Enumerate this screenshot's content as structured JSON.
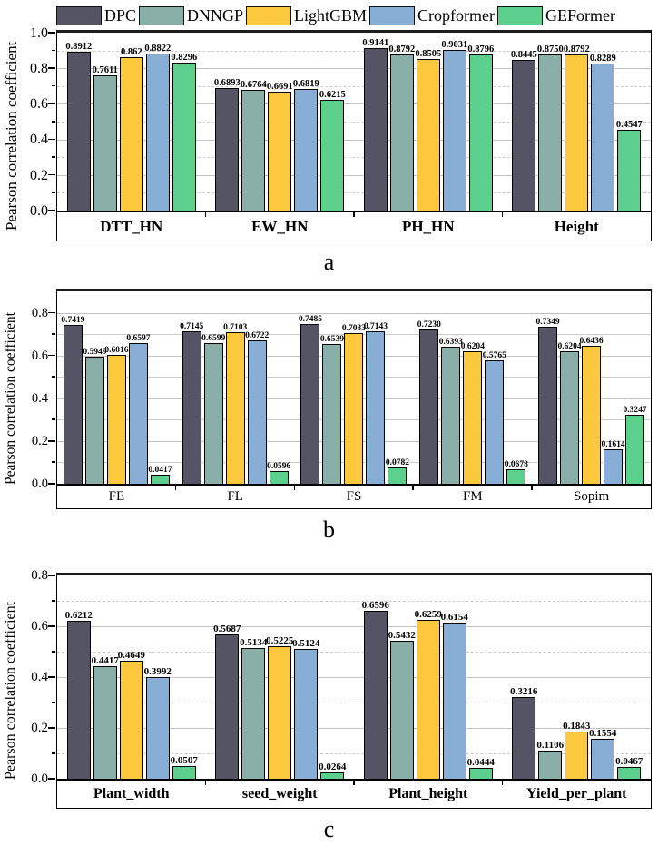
{
  "figure": {
    "background": "#ffffff",
    "y_axis_label": "Pearson correlation coefficient",
    "legend": {
      "position": "top",
      "items": [
        {
          "name": "DPC",
          "color": "#545464"
        },
        {
          "name": "DNNGP",
          "color": "#8aafa9"
        },
        {
          "name": "LightGBM",
          "color": "#fcc93e"
        },
        {
          "name": "Cropformer",
          "color": "#88aed6"
        },
        {
          "name": "GEFormer",
          "color": "#5ccf8d"
        }
      ]
    }
  },
  "chart_data": [
    {
      "id": "a",
      "type": "bar",
      "sublabel": "a",
      "title": "",
      "xlabel": "",
      "ylabel": "Pearson correlation coefficient",
      "ylim": [
        0,
        1.0
      ],
      "yticks": [
        "0.0",
        "0.2",
        "0.4",
        "0.6",
        "0.8",
        "1.0"
      ],
      "grid_style": "major_solid_minor_dashed",
      "legend_position": "top-shared",
      "categories": [
        "DTT_HN",
        "EW_HN",
        "PH_HN",
        "Height"
      ],
      "series": [
        {
          "name": "DPC",
          "values": [
            "0.8912",
            "0.6893",
            "0.9141",
            "0.8445"
          ]
        },
        {
          "name": "DNNGP",
          "values": [
            "0.7611",
            "0.6764",
            "0.8792",
            "0.8750"
          ]
        },
        {
          "name": "LightGBM",
          "values": [
            "0.862",
            "0.6691",
            "0.8505",
            "0.8792"
          ]
        },
        {
          "name": "Cropformer",
          "values": [
            "0.8822",
            "0.6819",
            "0.9031",
            "0.8289"
          ]
        },
        {
          "name": "GEFormer",
          "values": [
            "0.8296",
            "0.6215",
            "0.8796",
            "0.4547"
          ]
        }
      ]
    },
    {
      "id": "b",
      "type": "bar",
      "sublabel": "b",
      "title": "",
      "xlabel": "",
      "ylabel": "Pearson correlation coefficient",
      "ylim": [
        0,
        0.9
      ],
      "yticks": [
        "0.0",
        "0.2",
        "0.4",
        "0.6",
        "0.8"
      ],
      "grid_style": "solid_every_0.1",
      "legend_position": "top-shared",
      "categories": [
        "FE",
        "FL",
        "FS",
        "FM",
        "Sopim"
      ],
      "series": [
        {
          "name": "DPC",
          "values": [
            "0.7419",
            "0.7145",
            "0.7485",
            "0.7230",
            "0.7349"
          ]
        },
        {
          "name": "DNNGP",
          "values": [
            "0.5949",
            "0.6599",
            "0.6539",
            "0.6393",
            "0.6204"
          ]
        },
        {
          "name": "LightGBM",
          "values": [
            "0.6016",
            "0.7103",
            "0.7033",
            "0.6204",
            "0.6436"
          ]
        },
        {
          "name": "Cropformer",
          "values": [
            "0.6597",
            "0.6722",
            "0.7143",
            "0.5765",
            "0.1614"
          ]
        },
        {
          "name": "GEFormer",
          "values": [
            "0.0417",
            "0.0596",
            "0.0782",
            "0.0678",
            "0.3247"
          ]
        }
      ]
    },
    {
      "id": "c",
      "type": "bar",
      "sublabel": "c",
      "title": "",
      "xlabel": "",
      "ylabel": "Pearson correlation coefficient",
      "ylim": [
        0,
        0.8
      ],
      "yticks": [
        "0.0",
        "0.2",
        "0.4",
        "0.6",
        "0.8"
      ],
      "grid_style": "major_solid_minor_dashed",
      "legend_position": "top-shared",
      "categories": [
        "Plant_width",
        "seed_weight",
        "Plant_height",
        "Yield_per_plant"
      ],
      "series": [
        {
          "name": "DPC",
          "values": [
            "0.6212",
            "0.5687",
            "0.6596",
            "0.3216"
          ]
        },
        {
          "name": "DNNGP",
          "values": [
            "0.4417",
            "0.5134",
            "0.5432",
            "0.1106"
          ]
        },
        {
          "name": "LightGBM",
          "values": [
            "0.4649",
            "0.5225",
            "0.6259",
            "0.1843"
          ]
        },
        {
          "name": "Cropformer",
          "values": [
            "0.3992",
            "0.5124",
            "0.6154",
            "0.1554"
          ]
        },
        {
          "name": "GEFormer",
          "values": [
            "0.0507",
            "0.0264",
            "0.0444",
            "0.0467"
          ]
        }
      ]
    }
  ]
}
